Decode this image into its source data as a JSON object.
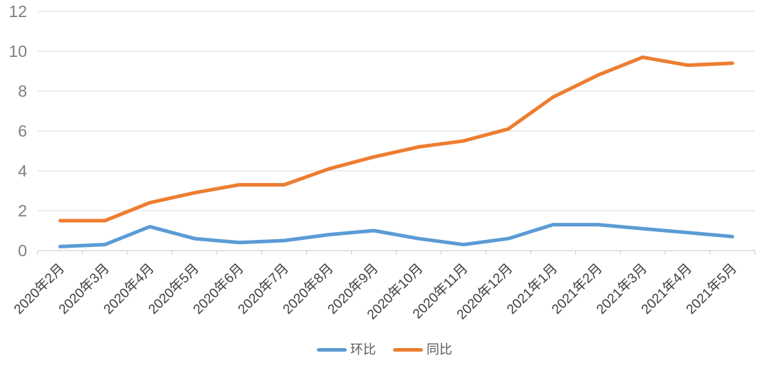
{
  "chart_data": {
    "type": "line",
    "title": "",
    "categories": [
      "2020年2月",
      "2020年3月",
      "2020年4月",
      "2020年5月",
      "2020年6月",
      "2020年7月",
      "2020年8月",
      "2020年9月",
      "2020年10月",
      "2020年11月",
      "2020年12月",
      "2021年1月",
      "2021年2月",
      "2021年3月",
      "2021年4月",
      "2021年5月"
    ],
    "series": [
      {
        "name": "环比",
        "color": "#5B9BD5",
        "values": [
          0.2,
          0.3,
          1.2,
          0.6,
          0.4,
          0.5,
          0.8,
          1.0,
          0.6,
          0.3,
          0.6,
          1.3,
          1.3,
          1.1,
          0.9,
          0.7
        ]
      },
      {
        "name": "同比",
        "color": "#ED7D31",
        "values": [
          1.5,
          1.5,
          2.4,
          2.9,
          3.3,
          3.3,
          4.1,
          4.7,
          5.2,
          5.5,
          6.1,
          7.7,
          8.8,
          9.7,
          9.3,
          9.4
        ]
      }
    ],
    "xlabel": "",
    "ylabel": "",
    "ylim": [
      0,
      12
    ],
    "y_ticks": [
      0,
      2,
      4,
      6,
      8,
      10,
      12
    ],
    "grid": true,
    "legend_position": "bottom",
    "line_width": 5
  },
  "styles": {
    "background": "#FFFFFF",
    "grid_color": "#D9D9D9",
    "axis_color": "#C8C8C8",
    "y_label_color": "#7F7F7F",
    "x_label_color": "#404040",
    "legend_text_color": "#595959"
  }
}
